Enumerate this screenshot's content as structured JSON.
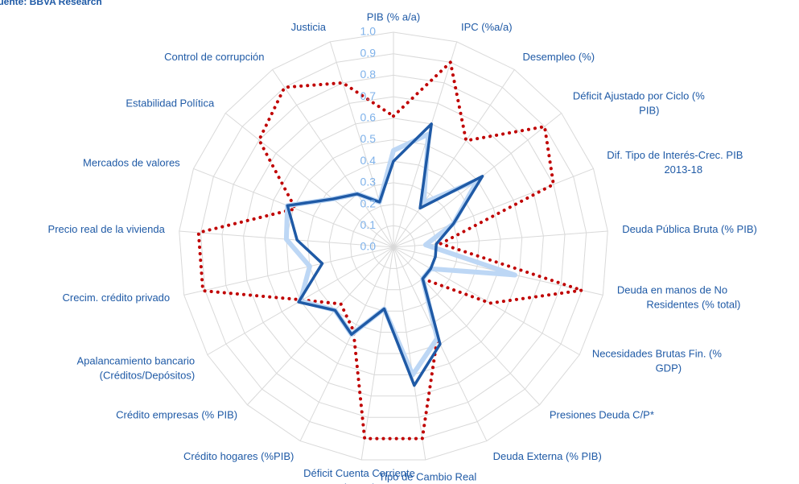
{
  "chart_data": {
    "type": "radar",
    "source": "Fuente: BBVA Research",
    "categories": [
      "PIB (% a/a)",
      "IPC (%a/a)",
      "Desempleo (%)",
      "Déficit Ajustado por Ciclo (%\nPIB)",
      "Dif. Tipo de Interés-Crec. PIB\n2013-18",
      "Deuda Pública Bruta (% PIB)",
      "Deuda en manos de No\nResidentes (% total)",
      "Necesidades Brutas Fin. (%\nGDP)",
      "Presiones Deuda C/P*",
      "Deuda Externa  (% PIB)",
      "Tipo de Cambio Real",
      "Déficit Cuenta Corriente\n(%PIB)",
      "Crédito hogares (%PIB)",
      "Crédito empresas (% PIB)",
      "Apalancamiento bancario\n(Créditos/Depósitos)",
      "Crecim. crédito privado",
      "Precio real de la vivienda",
      "Mercados de valores",
      "Estabilidad Política",
      "Control de corrupción",
      "Justicia"
    ],
    "series": [
      {
        "color": "#c00000",
        "style": "dotted",
        "values": [
          0.61,
          0.9,
          0.6,
          0.9,
          0.8,
          0.22,
          0.9,
          0.52,
          0.2,
          0.47,
          0.9,
          0.9,
          0.43,
          0.36,
          0.49,
          0.91,
          0.91,
          0.49,
          0.8,
          0.9,
          0.8
        ]
      },
      {
        "color": "#bdd7f5",
        "style": "thick",
        "values": [
          0.45,
          0.55,
          0.25,
          0.5,
          0.3,
          0.15,
          0.58,
          0.2,
          0.2,
          0.47,
          0.6,
          0.29,
          0.45,
          0.4,
          0.5,
          0.4,
          0.5,
          0.53,
          0.36,
          0.3,
          0.22
        ]
      },
      {
        "color": "#1f5aa6",
        "style": "solid",
        "values": [
          0.4,
          0.6,
          0.22,
          0.53,
          0.3,
          0.2,
          0.2,
          0.2,
          0.2,
          0.5,
          0.65,
          0.29,
          0.45,
          0.4,
          0.51,
          0.34,
          0.45,
          0.53,
          0.36,
          0.3,
          0.22
        ]
      }
    ],
    "rlim": [
      0,
      1
    ],
    "rticks": [
      {
        "value": 0,
        "label": "0.0"
      },
      0.1,
      0.2,
      0.3,
      0.4,
      0.5,
      0.6,
      0.7,
      0.8,
      0.9,
      {
        "value": 1,
        "label": "1.0"
      }
    ],
    "grid": true
  }
}
